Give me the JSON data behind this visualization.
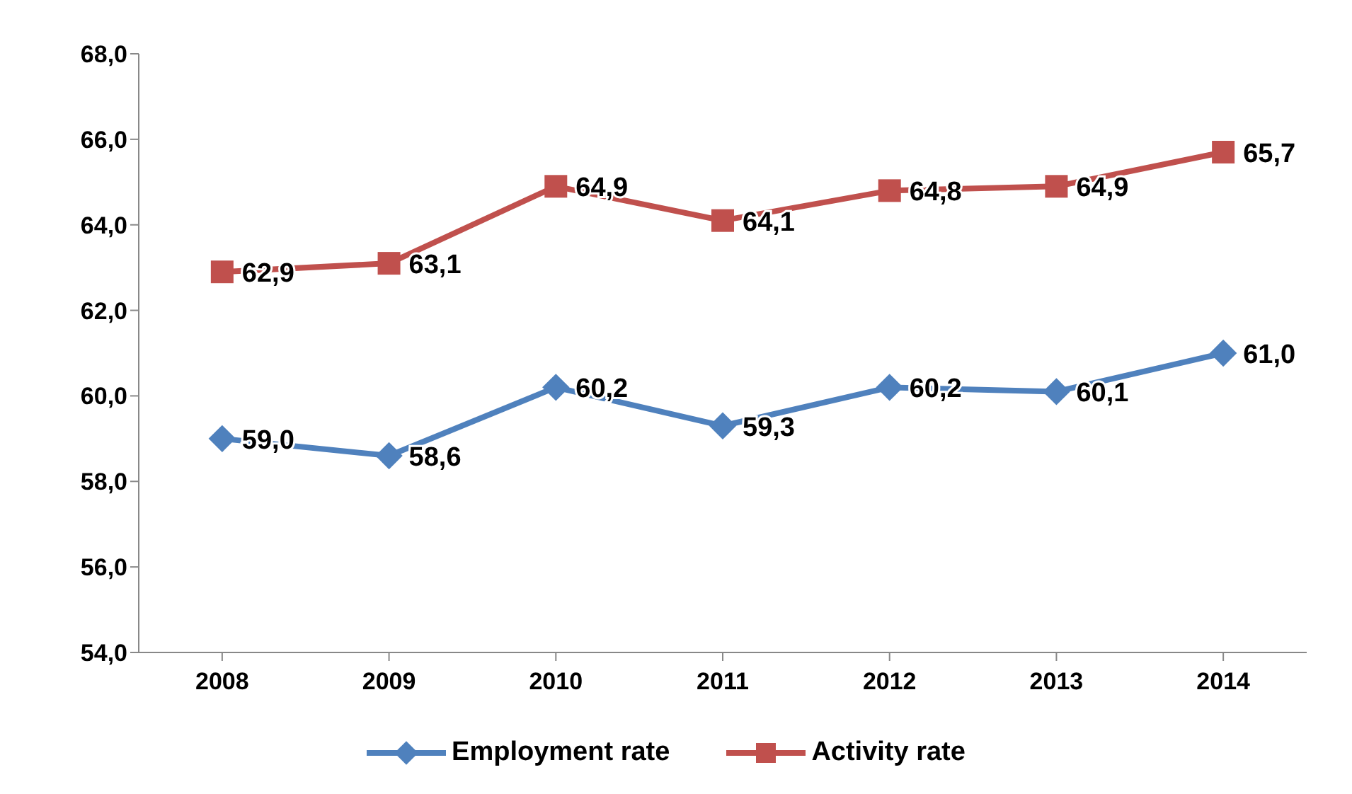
{
  "chart_data": {
    "type": "line",
    "categories": [
      "2008",
      "2009",
      "2010",
      "2011",
      "2012",
      "2013",
      "2014"
    ],
    "series": [
      {
        "name": "Employment rate",
        "color": "#4f81bd",
        "marker": "diamond",
        "values": [
          59.0,
          58.6,
          60.2,
          59.3,
          60.2,
          60.1,
          61.0
        ],
        "value_labels": [
          "59,0",
          "58,6",
          "60,2",
          "59,3",
          "60,2",
          "60,1",
          "61,0"
        ]
      },
      {
        "name": "Activity rate",
        "color": "#c0504d",
        "marker": "square",
        "values": [
          62.9,
          63.1,
          64.9,
          64.1,
          64.8,
          64.9,
          65.7
        ],
        "value_labels": [
          "62,9",
          "63,1",
          "64,9",
          "64,1",
          "64,8",
          "64,9",
          "65,7"
        ]
      }
    ],
    "ylim": [
      54,
      68
    ],
    "yticks": [
      {
        "value": 54,
        "label": "54,0"
      },
      {
        "value": 56,
        "label": "56,0"
      },
      {
        "value": 58,
        "label": "58,0"
      },
      {
        "value": 60,
        "label": "60,0"
      },
      {
        "value": 62,
        "label": "62,0"
      },
      {
        "value": 64,
        "label": "64,0"
      },
      {
        "value": 66,
        "label": "66,0"
      },
      {
        "value": 68,
        "label": "68,0"
      }
    ],
    "grid": false,
    "legend": "bottom",
    "line_style": "solid"
  }
}
